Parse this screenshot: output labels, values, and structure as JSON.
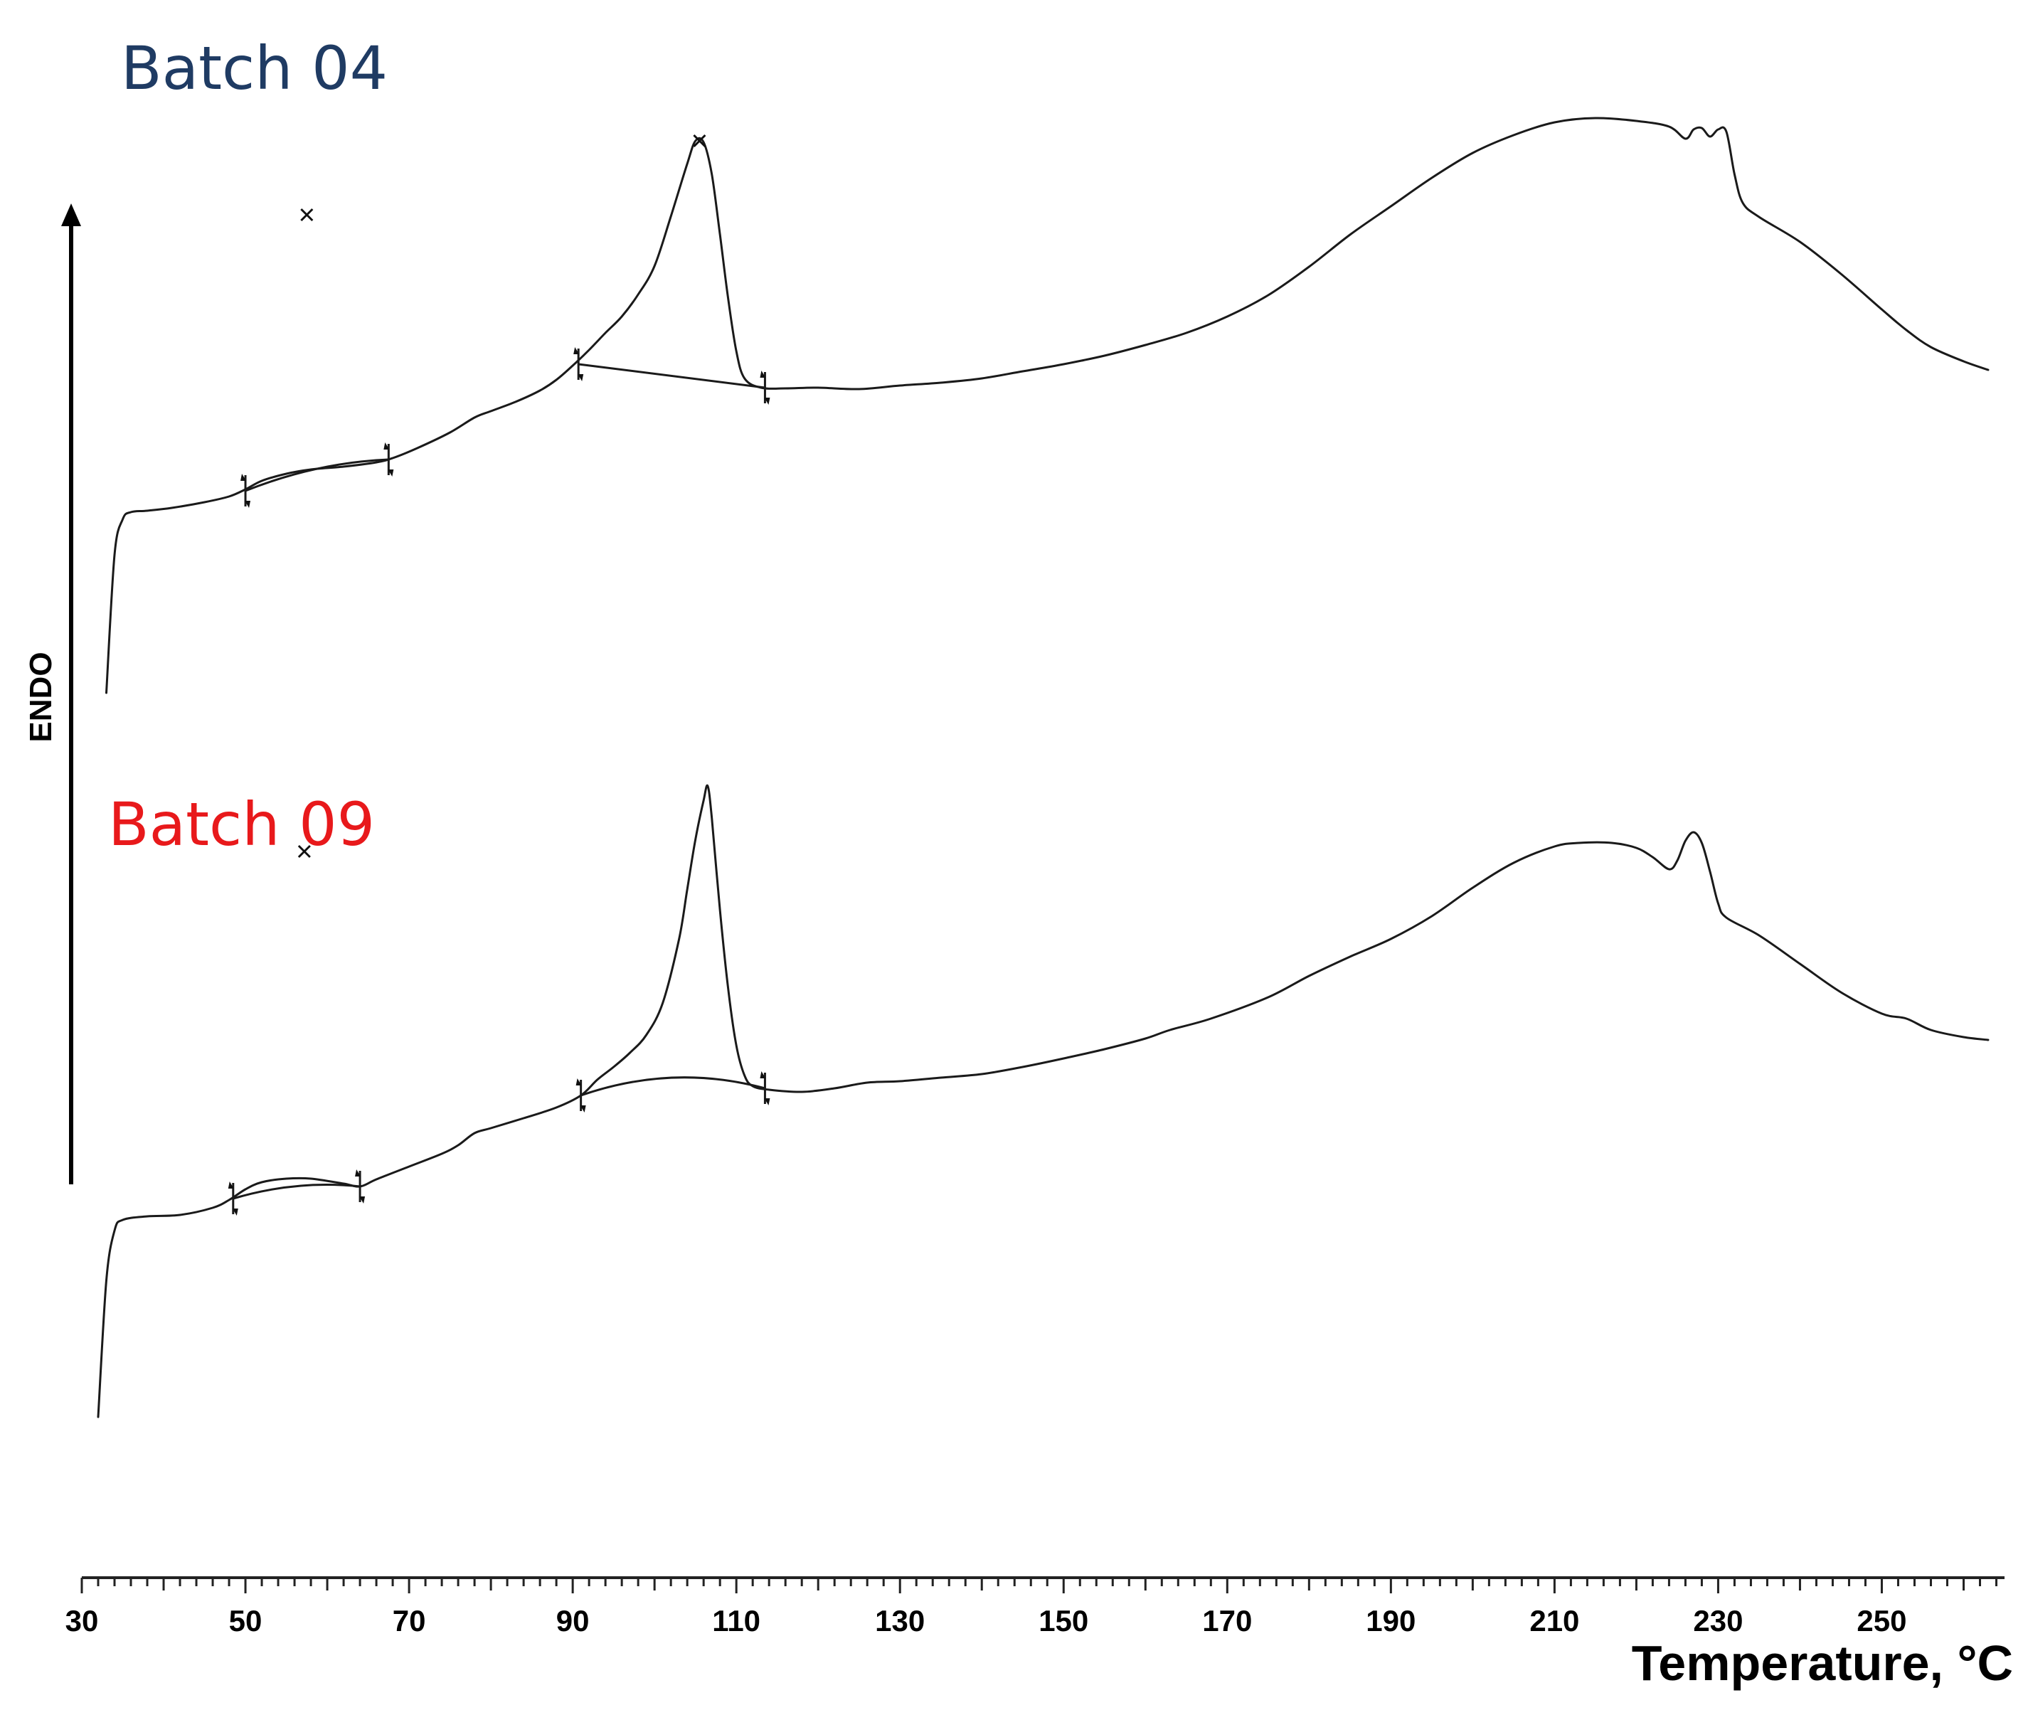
{
  "chart_data": {
    "type": "line",
    "title": "",
    "xlabel": "Temperature, °C",
    "ylabel": "ENDO",
    "xlim": [
      30,
      265
    ],
    "x_ticks": [
      30,
      50,
      70,
      90,
      110,
      130,
      150,
      170,
      190,
      210,
      230,
      250
    ],
    "y_axis_arrow": "up",
    "grid": false,
    "series": [
      {
        "name": "Batch 04",
        "color": "#1f3b63",
        "points": [
          [
            33,
            1.26
          ],
          [
            34,
            3.2
          ],
          [
            35,
            3.7
          ],
          [
            36,
            3.8
          ],
          [
            38,
            3.82
          ],
          [
            41,
            3.86
          ],
          [
            45,
            3.94
          ],
          [
            48,
            4.02
          ],
          [
            50,
            4.12
          ],
          [
            52,
            4.24
          ],
          [
            55,
            4.34
          ],
          [
            58,
            4.4
          ],
          [
            62,
            4.44
          ],
          [
            66,
            4.5
          ],
          [
            68,
            4.56
          ],
          [
            71,
            4.7
          ],
          [
            75,
            4.92
          ],
          [
            78,
            5.13
          ],
          [
            80,
            5.22
          ],
          [
            83,
            5.35
          ],
          [
            86,
            5.51
          ],
          [
            88,
            5.66
          ],
          [
            90,
            5.86
          ],
          [
            92,
            6.08
          ],
          [
            94,
            6.32
          ],
          [
            96,
            6.55
          ],
          [
            98,
            6.86
          ],
          [
            100,
            7.26
          ],
          [
            102,
            7.96
          ],
          [
            104,
            8.7
          ],
          [
            105,
            9.02
          ],
          [
            106,
            9.0
          ],
          [
            107,
            8.55
          ],
          [
            108,
            7.7
          ],
          [
            109,
            6.8
          ],
          [
            110,
            6.06
          ],
          [
            111,
            5.68
          ],
          [
            113,
            5.55
          ],
          [
            116,
            5.54
          ],
          [
            120,
            5.55
          ],
          [
            125,
            5.53
          ],
          [
            130,
            5.58
          ],
          [
            135,
            5.62
          ],
          [
            140,
            5.68
          ],
          [
            145,
            5.78
          ],
          [
            150,
            5.88
          ],
          [
            155,
            6.0
          ],
          [
            160,
            6.15
          ],
          [
            165,
            6.32
          ],
          [
            170,
            6.55
          ],
          [
            175,
            6.85
          ],
          [
            180,
            7.25
          ],
          [
            185,
            7.7
          ],
          [
            190,
            8.1
          ],
          [
            195,
            8.5
          ],
          [
            200,
            8.85
          ],
          [
            205,
            9.1
          ],
          [
            210,
            9.28
          ],
          [
            215,
            9.34
          ],
          [
            220,
            9.3
          ],
          [
            224,
            9.22
          ],
          [
            226,
            9.05
          ],
          [
            227,
            9.18
          ],
          [
            228,
            9.2
          ],
          [
            229,
            9.08
          ],
          [
            230,
            9.18
          ],
          [
            231,
            9.15
          ],
          [
            232,
            8.55
          ],
          [
            233,
            8.15
          ],
          [
            235,
            7.95
          ],
          [
            240,
            7.6
          ],
          [
            245,
            7.15
          ],
          [
            250,
            6.65
          ],
          [
            253,
            6.36
          ],
          [
            256,
            6.12
          ],
          [
            260,
            5.92
          ],
          [
            263,
            5.8
          ]
        ],
        "peaks": [
          {
            "x": 57.5,
            "onset": 50,
            "end": 67.5,
            "peak_y": 7.98,
            "onset_y": 4.1,
            "end_y": 4.54
          },
          {
            "x": 105.5,
            "onset": 90.7,
            "end": 113.5,
            "peak_y": 9.02,
            "onset_y": 5.88,
            "end_y": 5.55
          }
        ]
      },
      {
        "name": "Batch 09",
        "color": "#e8191b",
        "points": [
          [
            32,
            -8.92
          ],
          [
            33,
            -7.0
          ],
          [
            34,
            -6.3
          ],
          [
            35,
            -6.15
          ],
          [
            38,
            -6.1
          ],
          [
            42,
            -6.08
          ],
          [
            46,
            -5.98
          ],
          [
            48,
            -5.87
          ],
          [
            50,
            -5.72
          ],
          [
            52,
            -5.62
          ],
          [
            55,
            -5.57
          ],
          [
            58,
            -5.57
          ],
          [
            62,
            -5.64
          ],
          [
            64,
            -5.68
          ],
          [
            66,
            -5.58
          ],
          [
            70,
            -5.4
          ],
          [
            74,
            -5.22
          ],
          [
            76,
            -5.1
          ],
          [
            78,
            -4.93
          ],
          [
            80,
            -4.86
          ],
          [
            84,
            -4.72
          ],
          [
            88,
            -4.57
          ],
          [
            91,
            -4.4
          ],
          [
            93,
            -4.18
          ],
          [
            95,
            -4.0
          ],
          [
            97,
            -3.8
          ],
          [
            99,
            -3.55
          ],
          [
            101,
            -3.1
          ],
          [
            103,
            -2.2
          ],
          [
            104,
            -1.5
          ],
          [
            105,
            -0.8
          ],
          [
            106,
            -0.25
          ],
          [
            106.5,
            -0.05
          ],
          [
            107,
            -0.5
          ],
          [
            108,
            -1.8
          ],
          [
            109,
            -2.9
          ],
          [
            110,
            -3.7
          ],
          [
            111,
            -4.12
          ],
          [
            112,
            -4.27
          ],
          [
            114,
            -4.32
          ],
          [
            118,
            -4.35
          ],
          [
            122,
            -4.3
          ],
          [
            126,
            -4.22
          ],
          [
            130,
            -4.2
          ],
          [
            135,
            -4.15
          ],
          [
            140,
            -4.1
          ],
          [
            145,
            -4.0
          ],
          [
            150,
            -3.88
          ],
          [
            155,
            -3.75
          ],
          [
            160,
            -3.6
          ],
          [
            163,
            -3.48
          ],
          [
            168,
            -3.32
          ],
          [
            175,
            -3.02
          ],
          [
            180,
            -2.72
          ],
          [
            185,
            -2.45
          ],
          [
            190,
            -2.2
          ],
          [
            195,
            -1.88
          ],
          [
            200,
            -1.48
          ],
          [
            205,
            -1.13
          ],
          [
            210,
            -0.9
          ],
          [
            213,
            -0.85
          ],
          [
            217,
            -0.85
          ],
          [
            220,
            -0.92
          ],
          [
            222,
            -1.05
          ],
          [
            224,
            -1.22
          ],
          [
            225,
            -1.1
          ],
          [
            226,
            -0.82
          ],
          [
            227,
            -0.7
          ],
          [
            228,
            -0.85
          ],
          [
            229,
            -1.25
          ],
          [
            230,
            -1.7
          ],
          [
            231,
            -1.9
          ],
          [
            235,
            -2.15
          ],
          [
            240,
            -2.55
          ],
          [
            245,
            -2.95
          ],
          [
            250,
            -3.25
          ],
          [
            253,
            -3.32
          ],
          [
            256,
            -3.48
          ],
          [
            260,
            -3.58
          ],
          [
            263,
            -3.62
          ]
        ],
        "peaks": [
          {
            "x": 57.2,
            "onset": 48.5,
            "end": 64.0,
            "peak_y": -0.97,
            "onset_y": -5.85,
            "end_y": -5.68
          },
          {
            "x": 106.5,
            "onset": 91.0,
            "end": 113.5,
            "peak_y": -0.05,
            "onset_y": -4.4,
            "end_y": -4.3
          }
        ]
      }
    ]
  }
}
